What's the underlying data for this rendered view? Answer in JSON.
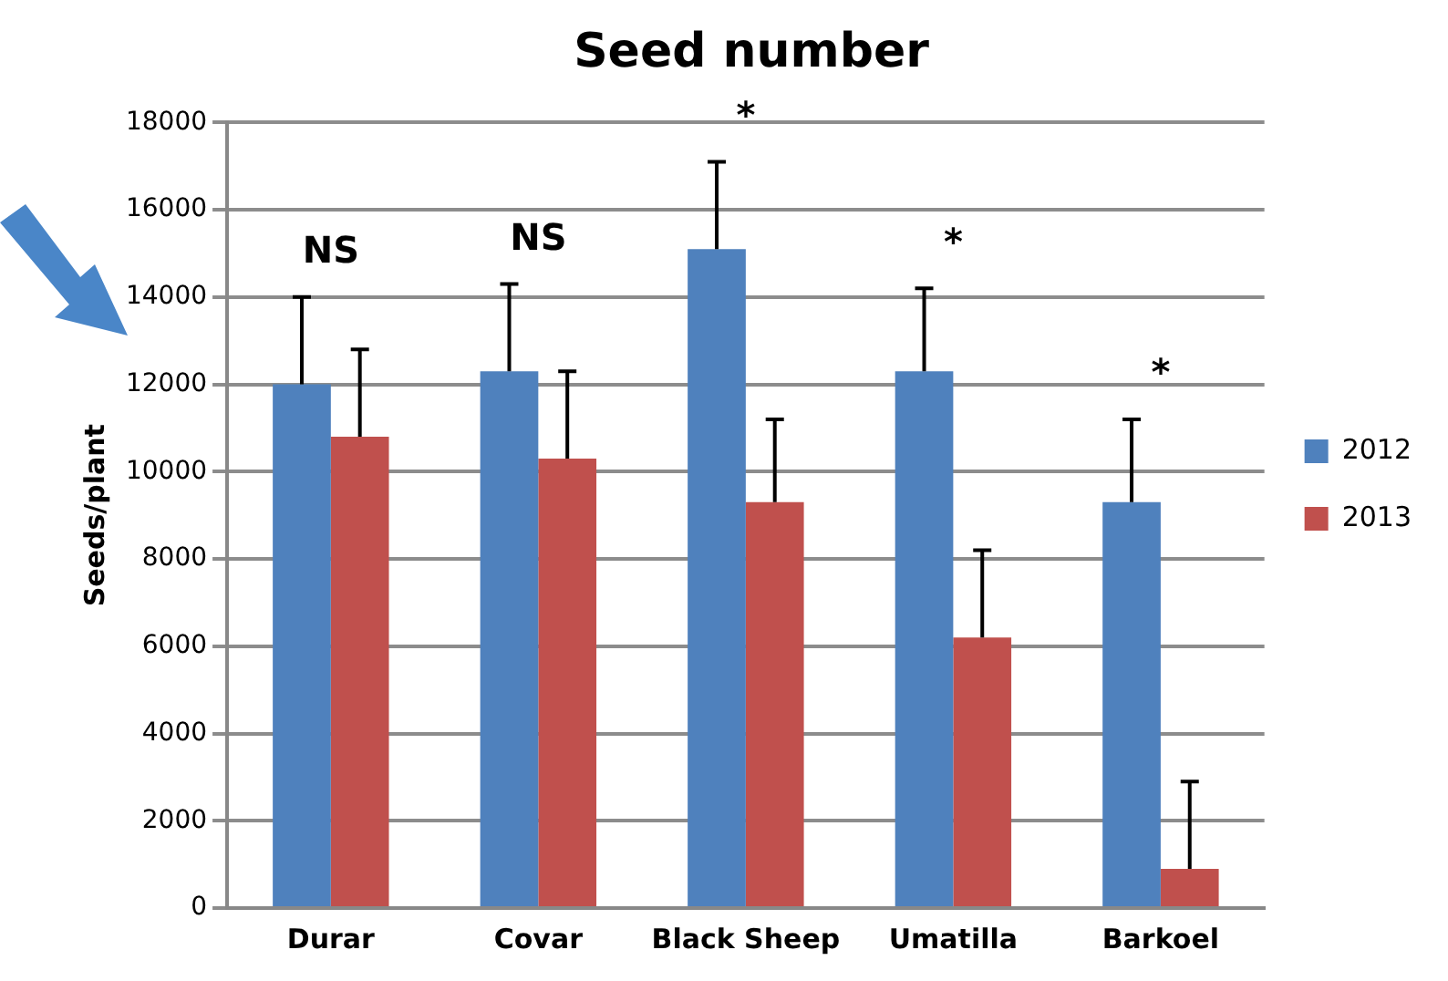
{
  "chart_data": {
    "type": "bar",
    "title": "Seed number",
    "ylabel": "Seeds/plant",
    "categories": [
      "Durar",
      "Covar",
      "Black Sheep",
      "Umatilla",
      "Barkoel"
    ],
    "series": [
      {
        "name": "2012",
        "color": "#4f81bd",
        "values": [
          12000,
          12300,
          15100,
          12300,
          9300
        ],
        "errors": [
          [
            12000,
            14000
          ],
          [
            12300,
            14300
          ],
          [
            15100,
            17100
          ],
          [
            12300,
            14200
          ],
          [
            9300,
            11200
          ]
        ]
      },
      {
        "name": "2013",
        "color": "#c0504d",
        "values": [
          10800,
          10300,
          9300,
          6200,
          900
        ],
        "errors": [
          [
            10800,
            12800
          ],
          [
            10300,
            12300
          ],
          [
            9300,
            11200
          ],
          [
            6200,
            8200
          ],
          [
            900,
            2900
          ]
        ]
      }
    ],
    "ylim": [
      0,
      18000
    ],
    "yticks": [
      0,
      2000,
      4000,
      6000,
      8000,
      10000,
      12000,
      14000,
      16000,
      18000
    ],
    "grid": "y",
    "legend": "right",
    "annotations": [
      "NS",
      "NS",
      "*",
      "*",
      "*"
    ]
  }
}
